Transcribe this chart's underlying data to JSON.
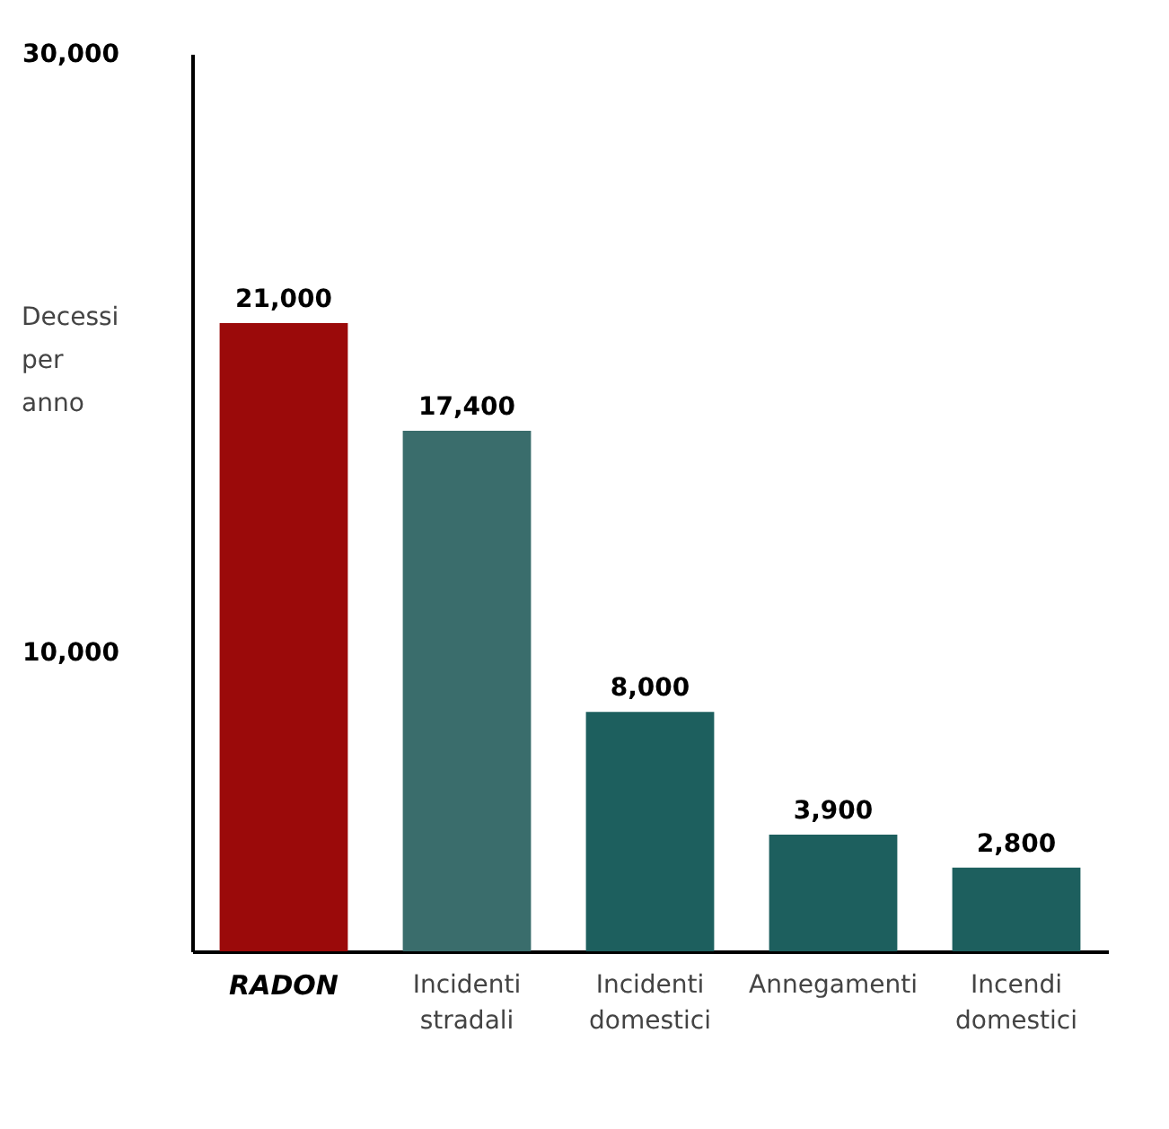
{
  "chart_data": {
    "type": "bar",
    "ylabel": "Decessi per anno",
    "categories": [
      "RADON",
      "Incidenti stradali",
      "Incidenti domestici",
      "Annegamenti",
      "Incendi domestici"
    ],
    "values": [
      21000,
      17400,
      8000,
      3900,
      2800
    ],
    "value_labels": [
      "21,000",
      "17,400",
      "8,000",
      "3,900",
      "2,800"
    ],
    "colors": [
      "#9b0a0a",
      "#3a6d6c",
      "#1d5f5e",
      "#1d5f5e",
      "#1d5f5e"
    ],
    "ylim": [
      0,
      30000
    ],
    "yticks": [
      {
        "value": 10000,
        "label": "10,000"
      },
      {
        "value": 30000,
        "label": "30,000"
      }
    ],
    "grid": false
  }
}
